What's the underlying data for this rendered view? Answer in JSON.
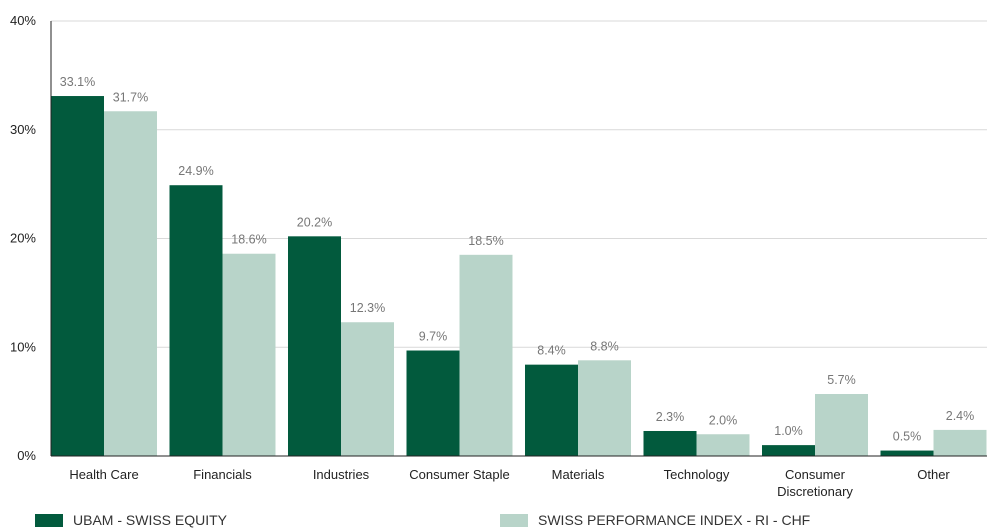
{
  "chart_data": {
    "type": "bar",
    "categories": [
      "Health Care",
      "Financials",
      "Industries",
      "Consumer Staple",
      "Materials",
      "Technology",
      "Consumer Discretionary",
      "Other"
    ],
    "category_lines": [
      [
        "Health Care"
      ],
      [
        "Financials"
      ],
      [
        "Industries"
      ],
      [
        "Consumer Staple"
      ],
      [
        "Materials"
      ],
      [
        "Technology"
      ],
      [
        "Consumer",
        "Discretionary"
      ],
      [
        "Other"
      ]
    ],
    "series": [
      {
        "name": "UBAM - SWISS EQUITY",
        "color": "#025a3d",
        "values": [
          33.1,
          24.9,
          20.2,
          9.7,
          8.4,
          2.3,
          1.0,
          0.5
        ],
        "labels": [
          "33.1%",
          "24.9%",
          "20.2%",
          "9.7%",
          "8.4%",
          "2.3%",
          "1.0%",
          "0.5%"
        ]
      },
      {
        "name": "SWISS PERFORMANCE INDEX - RI - CHF",
        "color": "#b8d4c9",
        "values": [
          31.7,
          18.6,
          12.3,
          18.5,
          8.8,
          2.0,
          5.7,
          2.4
        ],
        "labels": [
          "31.7%",
          "18.6%",
          "12.3%",
          "18.5%",
          "8.8%",
          "2.0%",
          "5.7%",
          "2.4%"
        ]
      }
    ],
    "yticks": [
      0,
      10,
      20,
      30,
      40
    ],
    "ytick_labels": [
      "0%",
      "10%",
      "20%",
      "30%",
      "40%"
    ],
    "ylim": [
      0,
      40
    ],
    "grid": true,
    "legend_position": "bottom"
  }
}
